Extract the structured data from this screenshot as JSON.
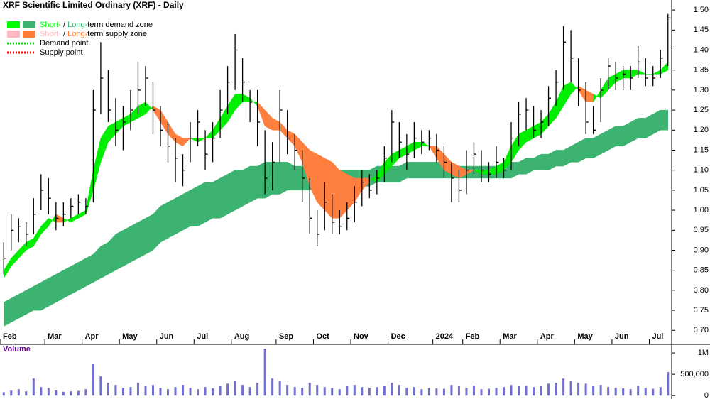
{
  "chart_data": [
    {
      "type": "ohlc",
      "title": "XRF Scientific Limited Ordinary (XRF) - Daily",
      "legend": [
        {
          "label_parts": [
            "Short-",
            " / ",
            "Long-",
            "term demand zone"
          ],
          "colors": [
            "#00ff00",
            "#3cb371"
          ]
        },
        {
          "label_parts": [
            "Short-",
            " / ",
            "Long-",
            "term supply zone"
          ],
          "colors": [
            "#ffb6c1",
            "#ff7f3f"
          ]
        },
        {
          "label": "Demand point",
          "color": "#00dd00"
        },
        {
          "label": "Supply point",
          "color": "#ff0000"
        }
      ],
      "xlim": [
        0,
        90
      ],
      "xticks": [
        {
          "value": 0,
          "label": "Feb"
        },
        {
          "value": 6,
          "label": "Mar"
        },
        {
          "value": 11,
          "label": "Apr"
        },
        {
          "value": 16,
          "label": "May"
        },
        {
          "value": 21,
          "label": "Jun"
        },
        {
          "value": 26,
          "label": "Jul"
        },
        {
          "value": 31,
          "label": "Aug"
        },
        {
          "value": 37,
          "label": "Sep"
        },
        {
          "value": 42,
          "label": "Oct"
        },
        {
          "value": 47,
          "label": "Nov"
        },
        {
          "value": 52,
          "label": "Dec"
        },
        {
          "value": 58,
          "label": "2024"
        },
        {
          "value": 62,
          "label": "Feb"
        },
        {
          "value": 67,
          "label": "Mar"
        },
        {
          "value": 72,
          "label": "Apr"
        },
        {
          "value": 77,
          "label": "May"
        },
        {
          "value": 82,
          "label": "Jun"
        },
        {
          "value": 87,
          "label": "Jul"
        }
      ],
      "ylim": [
        0.665,
        1.525
      ],
      "yticks": [
        {
          "value": 0.7,
          "label": "0.70"
        },
        {
          "value": 0.75,
          "label": "0.75"
        },
        {
          "value": 0.8,
          "label": "0.80"
        },
        {
          "value": 0.85,
          "label": "0.85"
        },
        {
          "value": 0.9,
          "label": "0.90"
        },
        {
          "value": 0.95,
          "label": "0.95"
        },
        {
          "value": 1.0,
          "label": "1.00"
        },
        {
          "value": 1.05,
          "label": "1.05"
        },
        {
          "value": 1.1,
          "label": "1.10"
        },
        {
          "value": 1.15,
          "label": "1.15"
        },
        {
          "value": 1.2,
          "label": "1.20"
        },
        {
          "value": 1.25,
          "label": "1.25"
        },
        {
          "value": 1.3,
          "label": "1.30"
        },
        {
          "value": 1.35,
          "label": "1.35"
        },
        {
          "value": 1.4,
          "label": "1.40"
        },
        {
          "value": 1.45,
          "label": "1.45"
        },
        {
          "value": 1.5,
          "label": "1.50"
        }
      ],
      "bar_color": "#000000",
      "demand_color": "#00ee00",
      "supply_color": "#ff7f3f",
      "long_color": "#3cb371",
      "close": [
        0.88,
        0.95,
        0.96,
        0.94,
        0.99,
        1.05,
        1.03,
        0.98,
        0.99,
        1.01,
        1.02,
        1.01,
        1.25,
        1.33,
        1.25,
        1.2,
        1.22,
        1.25,
        1.3,
        1.33,
        1.25,
        1.2,
        1.16,
        1.13,
        1.1,
        1.18,
        1.22,
        1.14,
        1.18,
        1.25,
        1.32,
        1.4,
        1.32,
        1.27,
        1.22,
        1.08,
        1.12,
        1.25,
        1.18,
        1.15,
        1.08,
        0.98,
        0.94,
        1.02,
        0.97,
        0.96,
        0.98,
        1.02,
        1.07,
        1.05,
        1.08,
        1.13,
        1.22,
        1.17,
        1.14,
        1.18,
        1.17,
        1.18,
        1.15,
        1.12,
        1.08,
        1.05,
        1.1,
        1.14,
        1.1,
        1.09,
        1.12,
        1.1,
        1.18,
        1.24,
        1.25,
        1.2,
        1.22,
        1.28,
        1.32,
        1.42,
        1.38,
        1.3,
        1.22,
        1.2,
        1.3,
        1.36,
        1.33,
        1.34,
        1.33,
        1.37,
        1.33,
        1.33,
        1.38,
        1.48
      ],
      "high": [
        0.92,
        0.99,
        0.98,
        0.97,
        1.03,
        1.09,
        1.08,
        1.02,
        1.02,
        1.03,
        1.04,
        1.03,
        1.3,
        1.42,
        1.35,
        1.28,
        1.26,
        1.3,
        1.37,
        1.36,
        1.32,
        1.26,
        1.22,
        1.18,
        1.14,
        1.22,
        1.25,
        1.2,
        1.22,
        1.3,
        1.36,
        1.44,
        1.38,
        1.3,
        1.3,
        1.2,
        1.17,
        1.3,
        1.25,
        1.19,
        1.15,
        1.08,
        1.0,
        1.07,
        1.04,
        1.0,
        1.02,
        1.06,
        1.1,
        1.09,
        1.1,
        1.16,
        1.25,
        1.22,
        1.19,
        1.22,
        1.2,
        1.2,
        1.19,
        1.16,
        1.12,
        1.1,
        1.15,
        1.17,
        1.15,
        1.12,
        1.16,
        1.13,
        1.22,
        1.27,
        1.28,
        1.26,
        1.25,
        1.31,
        1.35,
        1.46,
        1.45,
        1.38,
        1.32,
        1.26,
        1.33,
        1.38,
        1.37,
        1.36,
        1.36,
        1.41,
        1.38,
        1.36,
        1.4,
        1.49
      ],
      "low": [
        0.84,
        0.9,
        0.92,
        0.91,
        0.94,
        1.0,
        0.99,
        0.95,
        0.96,
        0.98,
        0.99,
        0.99,
        1.02,
        1.24,
        1.22,
        1.16,
        1.15,
        1.2,
        1.24,
        1.26,
        1.19,
        1.16,
        1.12,
        1.07,
        1.06,
        1.12,
        1.16,
        1.1,
        1.12,
        1.18,
        1.24,
        1.3,
        1.27,
        1.22,
        1.16,
        1.04,
        1.05,
        1.12,
        1.14,
        1.1,
        1.02,
        0.94,
        0.91,
        0.95,
        0.94,
        0.94,
        0.95,
        0.97,
        1.01,
        1.03,
        1.04,
        1.07,
        1.12,
        1.13,
        1.1,
        1.13,
        1.14,
        1.15,
        1.12,
        1.08,
        1.02,
        1.02,
        1.04,
        1.09,
        1.07,
        1.07,
        1.08,
        1.08,
        1.1,
        1.16,
        1.2,
        1.18,
        1.18,
        1.21,
        1.26,
        1.3,
        1.32,
        1.26,
        1.19,
        1.19,
        1.22,
        1.3,
        1.3,
        1.3,
        1.3,
        1.33,
        1.31,
        1.31,
        1.33,
        1.36
      ],
      "short_fast": [
        0.85,
        0.88,
        0.9,
        0.92,
        0.93,
        0.96,
        0.98,
        0.97,
        0.97,
        0.98,
        0.99,
        1.0,
        1.1,
        1.18,
        1.21,
        1.22,
        1.23,
        1.24,
        1.26,
        1.27,
        1.25,
        1.22,
        1.19,
        1.17,
        1.16,
        1.18,
        1.18,
        1.18,
        1.2,
        1.23,
        1.26,
        1.29,
        1.29,
        1.28,
        1.26,
        1.21,
        1.2,
        1.2,
        1.18,
        1.16,
        1.12,
        1.06,
        1.02,
        1.0,
        0.98,
        0.98,
        1.0,
        1.02,
        1.05,
        1.07,
        1.09,
        1.12,
        1.14,
        1.15,
        1.16,
        1.17,
        1.17,
        1.16,
        1.13,
        1.1,
        1.09,
        1.08,
        1.09,
        1.1,
        1.1,
        1.1,
        1.11,
        1.12,
        1.16,
        1.19,
        1.2,
        1.21,
        1.22,
        1.24,
        1.27,
        1.31,
        1.32,
        1.3,
        1.27,
        1.27,
        1.3,
        1.33,
        1.34,
        1.35,
        1.35,
        1.35,
        1.34,
        1.34,
        1.35,
        1.37
      ],
      "short_slow": [
        0.83,
        0.86,
        0.88,
        0.9,
        0.91,
        0.94,
        0.96,
        0.99,
        0.98,
        0.97,
        0.98,
        0.99,
        1.05,
        1.12,
        1.17,
        1.19,
        1.21,
        1.22,
        1.23,
        1.24,
        1.26,
        1.25,
        1.22,
        1.19,
        1.18,
        1.18,
        1.17,
        1.18,
        1.18,
        1.2,
        1.22,
        1.25,
        1.27,
        1.27,
        1.27,
        1.25,
        1.23,
        1.22,
        1.2,
        1.19,
        1.17,
        1.15,
        1.14,
        1.13,
        1.12,
        1.1,
        1.09,
        1.08,
        1.08,
        1.08,
        1.07,
        1.09,
        1.11,
        1.13,
        1.14,
        1.15,
        1.16,
        1.16,
        1.16,
        1.14,
        1.12,
        1.11,
        1.1,
        1.1,
        1.09,
        1.09,
        1.09,
        1.1,
        1.12,
        1.15,
        1.17,
        1.18,
        1.19,
        1.21,
        1.23,
        1.26,
        1.29,
        1.31,
        1.3,
        1.29,
        1.28,
        1.3,
        1.32,
        1.33,
        1.33,
        1.34,
        1.34,
        1.34,
        1.34,
        1.35
      ],
      "long_upper": [
        0.77,
        0.78,
        0.79,
        0.8,
        0.81,
        0.82,
        0.83,
        0.84,
        0.85,
        0.86,
        0.87,
        0.88,
        0.89,
        0.91,
        0.92,
        0.94,
        0.95,
        0.96,
        0.97,
        0.98,
        0.99,
        1.01,
        1.02,
        1.03,
        1.04,
        1.05,
        1.06,
        1.07,
        1.07,
        1.08,
        1.09,
        1.1,
        1.1,
        1.11,
        1.11,
        1.12,
        1.12,
        1.12,
        1.12,
        1.11,
        1.11,
        1.11,
        1.11,
        1.1,
        1.1,
        1.1,
        1.1,
        1.1,
        1.1,
        1.1,
        1.11,
        1.11,
        1.11,
        1.11,
        1.12,
        1.12,
        1.12,
        1.12,
        1.12,
        1.12,
        1.12,
        1.11,
        1.11,
        1.11,
        1.11,
        1.11,
        1.11,
        1.11,
        1.12,
        1.12,
        1.13,
        1.13,
        1.14,
        1.14,
        1.15,
        1.15,
        1.16,
        1.17,
        1.18,
        1.18,
        1.19,
        1.2,
        1.21,
        1.21,
        1.22,
        1.23,
        1.23,
        1.24,
        1.25,
        1.25
      ],
      "long_lower": [
        0.71,
        0.72,
        0.73,
        0.74,
        0.75,
        0.75,
        0.76,
        0.77,
        0.78,
        0.79,
        0.8,
        0.81,
        0.82,
        0.83,
        0.84,
        0.85,
        0.86,
        0.87,
        0.88,
        0.89,
        0.9,
        0.92,
        0.93,
        0.94,
        0.95,
        0.96,
        0.96,
        0.97,
        0.98,
        0.98,
        0.99,
        1.0,
        1.01,
        1.02,
        1.03,
        1.03,
        1.04,
        1.04,
        1.05,
        1.05,
        1.05,
        1.05,
        1.05,
        1.06,
        1.06,
        1.06,
        1.06,
        1.06,
        1.06,
        1.06,
        1.07,
        1.07,
        1.07,
        1.07,
        1.08,
        1.08,
        1.08,
        1.08,
        1.08,
        1.08,
        1.08,
        1.08,
        1.08,
        1.08,
        1.08,
        1.08,
        1.08,
        1.08,
        1.08,
        1.09,
        1.09,
        1.1,
        1.1,
        1.1,
        1.11,
        1.11,
        1.12,
        1.12,
        1.13,
        1.13,
        1.14,
        1.15,
        1.16,
        1.16,
        1.17,
        1.18,
        1.18,
        1.19,
        1.2,
        1.2
      ]
    },
    {
      "type": "bar",
      "ylabel": "Volume",
      "color": "#7070d0",
      "ylim": [
        -80000,
        1200000
      ],
      "yticks": [
        0,
        {
          "value": 500000,
          "label": "500,000"
        },
        {
          "value": 1000000,
          "label": "1M"
        }
      ],
      "values": [
        80000,
        120000,
        150000,
        100000,
        400000,
        200000,
        180000,
        120000,
        90000,
        100000,
        110000,
        150000,
        750000,
        450000,
        300000,
        250000,
        180000,
        200000,
        300000,
        220000,
        250000,
        180000,
        150000,
        200000,
        250000,
        180000,
        150000,
        200000,
        170000,
        220000,
        280000,
        350000,
        250000,
        200000,
        300000,
        1100000,
        400000,
        350000,
        250000,
        200000,
        180000,
        300000,
        250000,
        200000,
        180000,
        150000,
        220000,
        250000,
        200000,
        180000,
        200000,
        220000,
        300000,
        250000,
        180000,
        200000,
        150000,
        180000,
        170000,
        160000,
        250000,
        220000,
        180000,
        230000,
        150000,
        160000,
        180000,
        200000,
        250000,
        220000,
        230000,
        200000,
        220000,
        280000,
        300000,
        400000,
        350000,
        300000,
        280000,
        220000,
        250000,
        200000,
        180000,
        170000,
        150000,
        230000,
        180000,
        160000,
        200000,
        550000
      ]
    }
  ]
}
